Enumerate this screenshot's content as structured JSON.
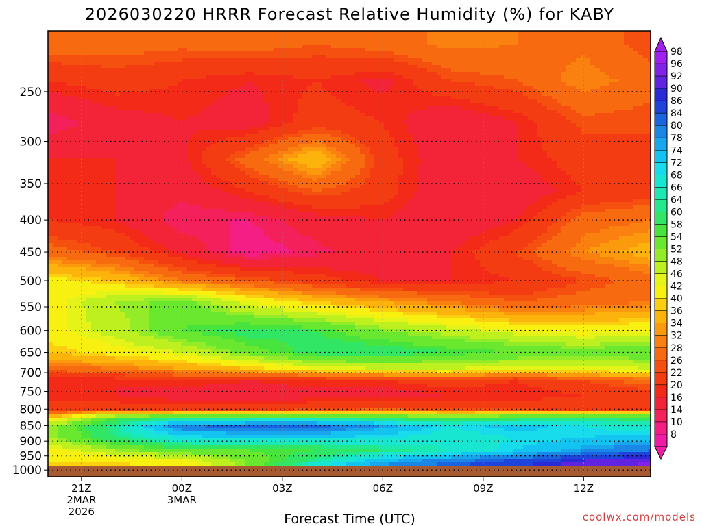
{
  "chart_data": {
    "type": "heatmap",
    "title": "2026030220 HRRR Forecast Relative Humidity (%) for KABY",
    "xlabel": "Forecast Time (UTC)",
    "ylabel": "",
    "credit": "coolwx.com/models",
    "y_axis": {
      "scale": "log",
      "reversed": true,
      "range": [
        200,
        1025
      ],
      "ticks": [
        "250",
        "300",
        "350",
        "400",
        "450",
        "500",
        "550",
        "600",
        "650",
        "700",
        "750",
        "800",
        "850",
        "900",
        "950",
        "1000"
      ]
    },
    "x_axis": {
      "range_hours_from_00Z_3MAR": [
        -4,
        14
      ],
      "ticks": [
        {
          "hour": -3,
          "lines": [
            "21Z",
            "2MAR",
            "2026"
          ]
        },
        {
          "hour": 0,
          "lines": [
            "00Z",
            "3MAR"
          ]
        },
        {
          "hour": 3,
          "lines": [
            "03Z"
          ]
        },
        {
          "hour": 6,
          "lines": [
            "06Z"
          ]
        },
        {
          "hour": 9,
          "lines": [
            "09Z"
          ]
        },
        {
          "hour": 12,
          "lines": [
            "12Z"
          ]
        }
      ]
    },
    "grid": true,
    "colorbar": {
      "placement": "right",
      "labels": [
        "98",
        "96",
        "92",
        "90",
        "86",
        "84",
        "80",
        "78",
        "74",
        "72",
        "68",
        "66",
        "64",
        "60",
        "58",
        "54",
        "52",
        "48",
        "46",
        "42",
        "40",
        "36",
        "34",
        "32",
        "28",
        "26",
        "22",
        "20",
        "16",
        "14",
        "10",
        "8"
      ],
      "colors": [
        "#a020f0",
        "#8022e8",
        "#6024e0",
        "#2a2ad8",
        "#1e44dc",
        "#1a64e0",
        "#1a86e6",
        "#18a6ec",
        "#14c4f0",
        "#18dcec",
        "#18e6d0",
        "#1ce8b4",
        "#22e88e",
        "#30e664",
        "#46e43c",
        "#6ae830",
        "#94ec28",
        "#bef020",
        "#e4f418",
        "#f8f010",
        "#fcd010",
        "#fcb40c",
        "#fc9a0e",
        "#fa8010",
        "#f86a10",
        "#f65010",
        "#f43c12",
        "#f42a18",
        "#f42438",
        "#f4205c",
        "#f41e84",
        "#f01ca6"
      ]
    },
    "series": [
      {
        "x": [
          -4,
          -2,
          0,
          2,
          4,
          6,
          8,
          10,
          12,
          14
        ],
        "rows": [
          {
            "pressure": 210,
            "values": [
              30,
              30,
              29,
              30,
              28,
              30,
              33,
              32,
              31,
              26
            ]
          },
          {
            "pressure": 240,
            "values": [
              22,
              24,
              22,
              20,
              22,
              19,
              26,
              28,
              34,
              30
            ]
          },
          {
            "pressure": 280,
            "values": [
              14,
              18,
              20,
              18,
              24,
              22,
              16,
              20,
              27,
              26
            ]
          },
          {
            "pressure": 320,
            "values": [
              20,
              20,
              19,
              30,
              40,
              24,
              17,
              20,
              24,
              26
            ]
          },
          {
            "pressure": 360,
            "values": [
              22,
              20,
              17,
              22,
              28,
              24,
              16,
              17,
              22,
              24
            ]
          },
          {
            "pressure": 400,
            "values": [
              22,
              20,
              14,
              14,
              18,
              20,
              16,
              20,
              30,
              32
            ]
          },
          {
            "pressure": 450,
            "values": [
              30,
              26,
              19,
              12,
              15,
              18,
              20,
              26,
              34,
              38
            ]
          },
          {
            "pressure": 500,
            "values": [
              44,
              40,
              32,
              28,
              24,
              20,
              20,
              22,
              26,
              30
            ]
          },
          {
            "pressure": 540,
            "values": [
              44,
              52,
              56,
              46,
              40,
              36,
              32,
              28,
              30,
              32
            ]
          },
          {
            "pressure": 600,
            "values": [
              44,
              50,
              58,
              62,
              60,
              54,
              50,
              46,
              44,
              46
            ]
          },
          {
            "pressure": 650,
            "values": [
              40,
              44,
              48,
              56,
              62,
              63,
              60,
              58,
              56,
              58
            ]
          },
          {
            "pressure": 690,
            "values": [
              30,
              32,
              36,
              40,
              46,
              48,
              48,
              46,
              46,
              48
            ]
          },
          {
            "pressure": 720,
            "values": [
              20,
              20,
              22,
              20,
              22,
              22,
              24,
              22,
              26,
              30
            ]
          },
          {
            "pressure": 760,
            "values": [
              22,
              20,
              18,
              17,
              18,
              18,
              20,
              20,
              22,
              24
            ]
          },
          {
            "pressure": 800,
            "values": [
              22,
              24,
              24,
              24,
              26,
              28,
              26,
              26,
              24,
              24
            ]
          },
          {
            "pressure": 825,
            "values": [
              40,
              58,
              62,
              62,
              62,
              60,
              58,
              60,
              62,
              62
            ]
          },
          {
            "pressure": 850,
            "values": [
              52,
              66,
              84,
              86,
              86,
              80,
              72,
              76,
              72,
              68
            ]
          },
          {
            "pressure": 890,
            "values": [
              52,
              64,
              72,
              74,
              74,
              72,
              70,
              72,
              74,
              76
            ]
          },
          {
            "pressure": 930,
            "values": [
              44,
              52,
              58,
              58,
              60,
              64,
              68,
              74,
              80,
              84
            ]
          },
          {
            "pressure": 970,
            "values": [
              42,
              42,
              44,
              54,
              66,
              78,
              84,
              88,
              93,
              96
            ]
          },
          {
            "pressure": 1010,
            "values": [
              40,
              40,
              42,
              56,
              82,
              86,
              88,
              92,
              96,
              98
            ]
          }
        ]
      }
    ]
  }
}
